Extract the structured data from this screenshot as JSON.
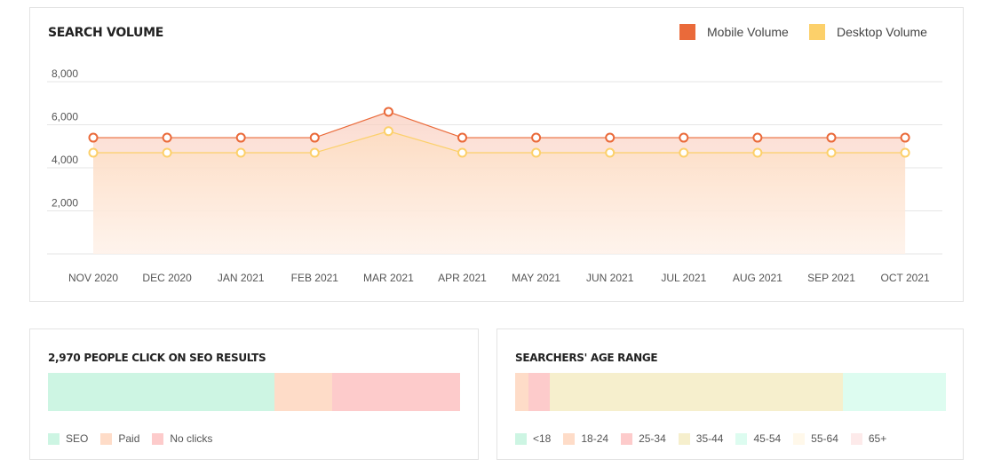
{
  "chart_data": [
    {
      "type": "area",
      "title": "SEARCH VOLUME",
      "categories": [
        "NOV 2020",
        "DEC 2020",
        "JAN 2021",
        "FEB 2021",
        "MAR 2021",
        "APR 2021",
        "MAY 2021",
        "JUN 2021",
        "JUL 2021",
        "AUG 2021",
        "SEP 2021",
        "OCT 2021"
      ],
      "series": [
        {
          "name": "Mobile Volume",
          "color": "#ea6a3a",
          "values": [
            5400,
            5400,
            5400,
            5400,
            6600,
            5400,
            5400,
            5400,
            5400,
            5400,
            5400,
            5400
          ]
        },
        {
          "name": "Desktop Volume",
          "color": "#fcd06a",
          "values": [
            4700,
            4700,
            4700,
            4700,
            5700,
            4700,
            4700,
            4700,
            4700,
            4700,
            4700,
            4700
          ]
        }
      ],
      "yticks": [
        "2,000",
        "4,000",
        "6,000",
        "8,000"
      ],
      "ylim": [
        0,
        8000
      ],
      "grid": true,
      "legend": "top-right"
    },
    {
      "type": "bar",
      "subtype": "stacked-100",
      "title": "2,970 PEOPLE CLICK ON SEO RESULTS",
      "segments": [
        {
          "name": "SEO",
          "value": 55,
          "color": "#cdf5e3"
        },
        {
          "name": "Paid",
          "value": 14,
          "color": "#fedcc8"
        },
        {
          "name": "No clicks",
          "value": 31,
          "color": "#fdcbcb"
        }
      ]
    },
    {
      "type": "bar",
      "subtype": "stacked-100",
      "title": "SEARCHERS' AGE RANGE",
      "segments": [
        {
          "name": "<18",
          "value": 0,
          "color": "#cdf5e3"
        },
        {
          "name": "18-24",
          "value": 3,
          "color": "#fedcc8"
        },
        {
          "name": "25-34",
          "value": 5,
          "color": "#fdcbcb"
        },
        {
          "name": "35-44",
          "value": 68,
          "color": "#f6efcd"
        },
        {
          "name": "45-54",
          "value": 24,
          "color": "#ddfcf0"
        },
        {
          "name": "55-64",
          "value": 0,
          "color": "#fff8ea"
        },
        {
          "name": "65+",
          "value": 0,
          "color": "#fdeaea"
        }
      ]
    }
  ]
}
